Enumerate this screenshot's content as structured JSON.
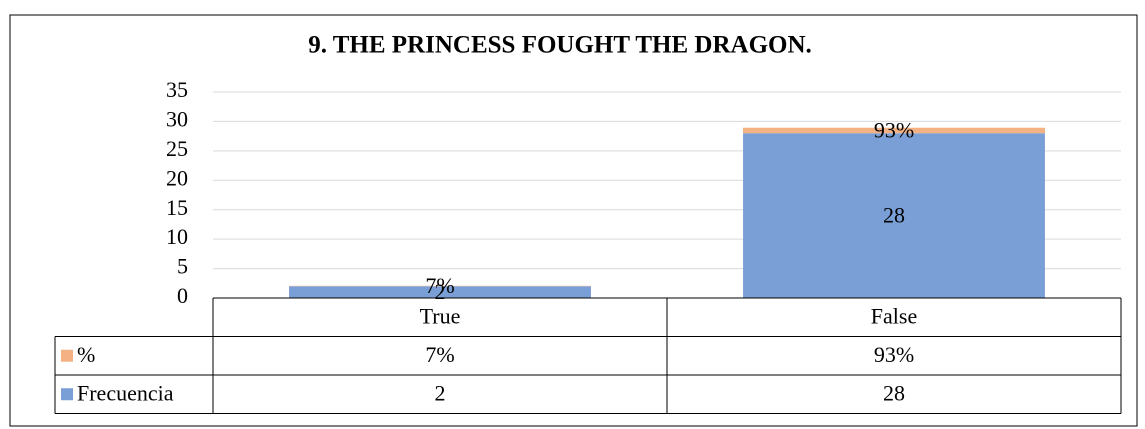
{
  "chart_data": {
    "type": "stacked_bar",
    "title": "9. THE PRINCESS FOUGHT THE DRAGON.",
    "categories": [
      "True",
      "False"
    ],
    "series": [
      {
        "name": "Frecuencia",
        "color": "#7a9fd6",
        "values": [
          2,
          28
        ]
      },
      {
        "name": "%",
        "color": "#f4b183",
        "values": [
          0.07,
          0.93
        ],
        "value_labels": [
          "7%",
          "93%"
        ]
      }
    ],
    "ylim": [
      0,
      35
    ],
    "yticks": [
      0,
      5,
      10,
      15,
      20,
      25,
      30,
      35
    ],
    "grid": true,
    "data_table": true
  }
}
